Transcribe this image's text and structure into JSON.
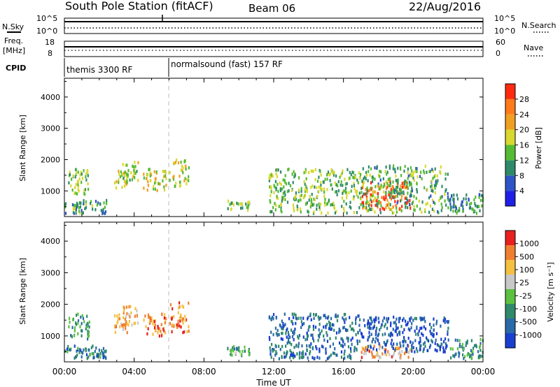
{
  "header": {
    "title": "South Pole Station (fitACF)",
    "beam": "Beam 06",
    "date": "22/Aug/2016"
  },
  "top_panels": {
    "nsky_label": "N.Sky",
    "nsearch_label": "N.Search",
    "noise_ticks": [
      "10^5",
      "10^0"
    ],
    "freq_label_1": "Freq.",
    "freq_label_2": "[MHz]",
    "freq_ticks": [
      "18",
      "8"
    ],
    "nave_label": "Nave",
    "nave_ticks": [
      "60",
      "0"
    ],
    "cpid_label": "CPID",
    "cpid_segments": [
      {
        "label": "themis 3300 RF",
        "start_hour": 0,
        "end_hour": 6
      },
      {
        "label": "normalsound (fast) 157 RF",
        "start_hour": 6,
        "end_hour": 24
      }
    ]
  },
  "x_axis": {
    "label": "Time UT",
    "ticks": [
      "00:00",
      "04:00",
      "08:00",
      "12:00",
      "16:00",
      "20:00",
      "00:00"
    ]
  },
  "chart_data": [
    {
      "type": "heatmap",
      "name": "power-panel",
      "xlabel": "Time UT",
      "ylabel": "Slant Range [km]",
      "xlim": [
        0,
        24
      ],
      "ylim": [
        180,
        4600
      ],
      "yticks": [
        "1000",
        "2000",
        "3000",
        "4000"
      ],
      "colorbar": {
        "label": "Power [dB]",
        "ticks": [
          "4",
          "8",
          "12",
          "16",
          "20",
          "24",
          "28"
        ],
        "range": [
          0,
          32
        ],
        "colors": [
          "#1f1fe6",
          "#2e55c8",
          "#2f8a6a",
          "#55bb33",
          "#d8d830",
          "#f0a020",
          "#ff7a1a",
          "#ff2a10"
        ]
      },
      "regions": [
        {
          "t0": 0.0,
          "t1": 2.4,
          "r0": 280,
          "r1": 700,
          "level": 0.35
        },
        {
          "t0": 0.2,
          "t1": 1.4,
          "r0": 900,
          "r1": 1700,
          "level": 0.45
        },
        {
          "t0": 2.8,
          "t1": 3.6,
          "r0": 1100,
          "r1": 1700,
          "level": 0.55
        },
        {
          "t0": 3.3,
          "t1": 4.2,
          "r0": 1300,
          "r1": 2000,
          "level": 0.5
        },
        {
          "t0": 4.5,
          "t1": 5.8,
          "r0": 1000,
          "r1": 1700,
          "level": 0.55
        },
        {
          "t0": 6.0,
          "t1": 7.1,
          "r0": 1100,
          "r1": 2100,
          "level": 0.55
        },
        {
          "t0": 9.3,
          "t1": 10.6,
          "r0": 380,
          "r1": 700,
          "level": 0.45
        },
        {
          "t0": 11.7,
          "t1": 17.0,
          "r0": 280,
          "r1": 1700,
          "level": 0.45
        },
        {
          "t0": 17.0,
          "t1": 19.8,
          "r0": 400,
          "r1": 1300,
          "level": 0.85
        },
        {
          "t0": 17.0,
          "t1": 22.0,
          "r0": 300,
          "r1": 1800,
          "level": 0.4
        },
        {
          "t0": 22.0,
          "t1": 24.0,
          "r0": 280,
          "r1": 900,
          "level": 0.3
        }
      ]
    },
    {
      "type": "heatmap",
      "name": "velocity-panel",
      "xlabel": "Time UT",
      "ylabel": "Slant Range [km]",
      "xlim": [
        0,
        24
      ],
      "ylim": [
        180,
        4600
      ],
      "yticks": [
        "1000",
        "2000",
        "3000",
        "4000"
      ],
      "colorbar": {
        "label": "Velocity [m s⁻¹]",
        "ticks": [
          "1000",
          "500",
          "100",
          "25",
          "-25",
          "-100",
          "-500",
          "-1000"
        ],
        "colors": [
          "#1a3fd0",
          "#2a6aa8",
          "#2f8a6a",
          "#5cc040",
          "#c8c8c8",
          "#f5c040",
          "#f08030",
          "#e82020"
        ]
      },
      "regions": [
        {
          "t0": 0.0,
          "t1": 2.4,
          "r0": 280,
          "r1": 700,
          "level": 0.25
        },
        {
          "t0": 0.2,
          "t1": 1.4,
          "r0": 900,
          "r1": 1700,
          "level": 0.3
        },
        {
          "t0": 2.8,
          "t1": 3.6,
          "r0": 1100,
          "r1": 1700,
          "level": 0.75
        },
        {
          "t0": 3.3,
          "t1": 4.2,
          "r0": 1300,
          "r1": 2000,
          "level": 0.7
        },
        {
          "t0": 4.5,
          "t1": 5.8,
          "r0": 1000,
          "r1": 1700,
          "level": 0.8
        },
        {
          "t0": 6.0,
          "t1": 7.1,
          "r0": 1100,
          "r1": 2100,
          "level": 0.82
        },
        {
          "t0": 9.3,
          "t1": 10.6,
          "r0": 380,
          "r1": 700,
          "level": 0.35
        },
        {
          "t0": 11.7,
          "t1": 17.0,
          "r0": 280,
          "r1": 1700,
          "level": 0.2
        },
        {
          "t0": 17.0,
          "t1": 19.8,
          "r0": 300,
          "r1": 700,
          "level": 0.72
        },
        {
          "t0": 17.0,
          "t1": 22.0,
          "r0": 500,
          "r1": 1600,
          "level": 0.12
        },
        {
          "t0": 22.0,
          "t1": 24.0,
          "r0": 280,
          "r1": 900,
          "level": 0.3
        }
      ]
    }
  ]
}
